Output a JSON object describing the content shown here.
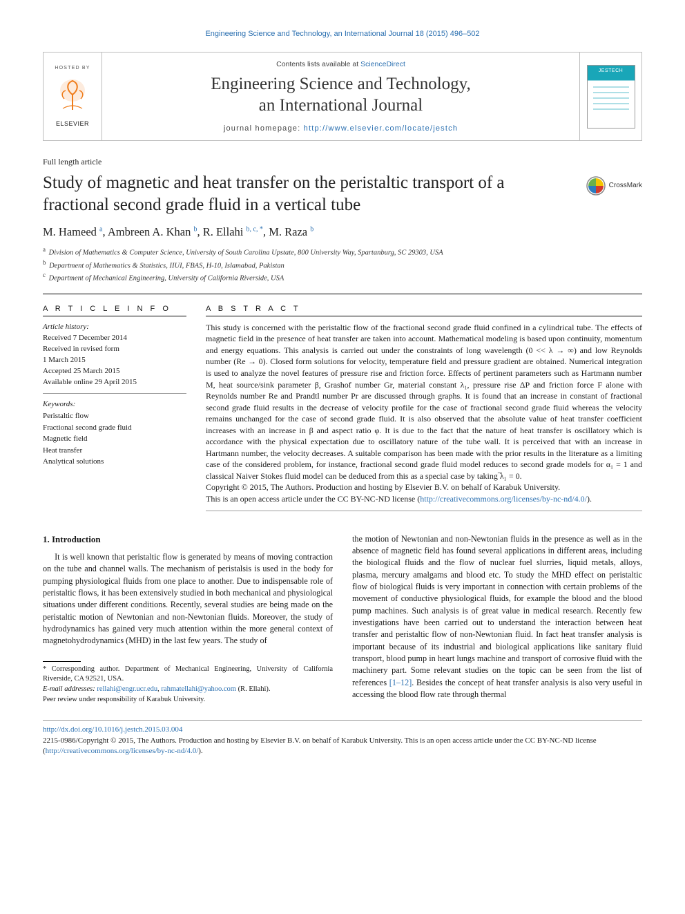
{
  "running_header": "Engineering Science and Technology, an International Journal 18 (2015) 496–502",
  "header": {
    "hosted_by": "HOSTED BY",
    "publisher": "ELSEVIER",
    "contents_prefix": "Contents lists available at ",
    "contents_link": "ScienceDirect",
    "journal_title_l1": "Engineering Science and Technology,",
    "journal_title_l2": "an International Journal",
    "homepage_prefix": "journal homepage: ",
    "homepage_url": "http://www.elsevier.com/locate/jestch",
    "cover_label": "JESTECH"
  },
  "article_type": "Full length article",
  "title": "Study of magnetic and heat transfer on the peristaltic transport of a fractional second grade fluid in a vertical tube",
  "crossmark": "CrossMark",
  "authors_html": "M. Hameed <sup>a</sup>, Ambreen A. Khan <sup>b</sup>, R. Ellahi <sup>b, c, *</sup>, M. Raza <sup>b</sup>",
  "affiliations": [
    {
      "key": "a",
      "text": "Division of Mathematics & Computer Science, University of South Carolina Upstate, 800 University Way, Spartanburg, SC 29303, USA"
    },
    {
      "key": "b",
      "text": "Department of Mathematics & Statistics, IIUI, FBAS, H-10, Islamabad, Pakistan"
    },
    {
      "key": "c",
      "text": "Department of Mechanical Engineering, University of California Riverside, USA"
    }
  ],
  "article_info": {
    "heading": "A R T I C L E   I N F O",
    "history_label": "Article history:",
    "history": [
      "Received 7 December 2014",
      "Received in revised form",
      "1 March 2015",
      "Accepted 25 March 2015",
      "Available online 29 April 2015"
    ],
    "keywords_label": "Keywords:",
    "keywords": [
      "Peristaltic flow",
      "Fractional second grade fluid",
      "Magnetic field",
      "Heat transfer",
      "Analytical solutions"
    ]
  },
  "abstract": {
    "heading": "A B S T R A C T",
    "body": "This study is concerned with the peristaltic flow of the fractional second grade fluid confined in a cylindrical tube. The effects of magnetic field in the presence of heat transfer are taken into account. Mathematical modeling is based upon continuity, momentum and energy equations. This analysis is carried out under the constraints of long wavelength (0 << λ → ∞) and low Reynolds number (Re → 0). Closed form solutions for velocity, temperature field and pressure gradient are obtained. Numerical integration is used to analyze the novel features of pressure rise and friction force. Effects of pertinent parameters such as Hartmann number M, heat source/sink parameter β, Grashof number Gr, material constant λ₁, pressure rise ΔP and friction force F alone with Reynolds number Re and Prandtl number Pr are discussed through graphs. It is found that an increase in constant of fractional second grade fluid results in the decrease of velocity profile for the case of fractional second grade fluid whereas the velocity remains unchanged for the case of second grade fluid. It is also observed that the absolute value of heat transfer coefficient increases with an increase in β and aspect ratio φ. It is due to the fact that the nature of heat transfer is oscillatory which is accordance with the physical expectation due to oscillatory nature of the tube wall. It is perceived that with an increase in Hartmann number, the velocity decreases. A suitable comparison has been made with the prior results in the literature as a limiting case of the considered problem, for instance, fractional second grade fluid model reduces to second grade models for α₁ = 1 and classical Naiver Stokes fluid model can be deduced from this as a special case by taking ̅λ₁ = 0.",
    "copyright": "Copyright © 2015, The Authors. Production and hosting by Elsevier B.V. on behalf of Karabuk University.",
    "openaccess_prefix": "This is an open access article under the CC BY-NC-ND license (",
    "license_url": "http://creativecommons.org/licenses/by-nc-nd/4.0/",
    "openaccess_suffix": ")."
  },
  "intro": {
    "heading": "1.  Introduction",
    "p1": "It is well known that peristaltic flow is generated by means of moving contraction on the tube and channel walls. The mechanism of peristalsis is used in the body for pumping physiological fluids from one place to another. Due to indispensable role of peristaltic flows, it has been extensively studied in both mechanical and physiological situations under different conditions. Recently, several studies are being made on the peristaltic motion of Newtonian and non-Newtonian fluids. Moreover, the study of hydrodynamics has gained very much attention within the more general context of magnetohydrodynamics (MHD) in the last few years. The study of",
    "p2_pre": "the motion of Newtonian and non-Newtonian fluids in the presence as well as in the absence of magnetic field has found several applications in different areas, including the biological fluids and the flow of nuclear fuel slurries, liquid metals, alloys, plasma, mercury amalgams and blood etc. To study the MHD effect on peristaltic flow of biological fluids is very important in connection with certain problems of the movement of conductive physiological fluids, for example the blood and the blood pump machines. Such analysis is of great value in medical research. Recently few investigations have been carried out to understand the interaction between heat transfer and peristaltic flow of non-Newtonian fluid. In fact heat transfer analysis is important because of its industrial and biological applications like sanitary fluid transport, blood pump in heart lungs machine and transport of corrosive fluid with the machinery part. Some relevant studies on the topic can be seen from the list of references ",
    "p2_ref": "[1–12]",
    "p2_post": ". Besides the concept of heat transfer analysis is also very useful in accessing the blood flow rate through thermal"
  },
  "footnotes": {
    "corr": "* Corresponding author. Department of Mechanical Engineering, University of California Riverside, CA 92521, USA.",
    "email_label": "E-mail addresses: ",
    "email1": "rellahi@engr.ucr.edu",
    "email_sep": ", ",
    "email2": "rahmatellahi@yahoo.com",
    "email_author": " (R. Ellahi).",
    "peer": "Peer review under responsibility of Karabuk University."
  },
  "footer": {
    "doi": "http://dx.doi.org/10.1016/j.jestch.2015.03.004",
    "issn_line_pre": "2215-0986/Copyright © 2015, The Authors. Production and hosting by Elsevier B.V. on behalf of Karabuk University. This is an open access article under the CC BY-NC-ND license (",
    "license_url": "http://creativecommons.org/licenses/by-nc-nd/4.0/",
    "issn_line_post": ")."
  },
  "colors": {
    "link": "#2a6fb0",
    "logo_orange": "#ef7c1a",
    "teal": "#19a6b8",
    "text": "#1a1a1a",
    "rule": "#000000",
    "rule_light": "#9a9a9a",
    "crossmark_yellow": "#f5c400",
    "crossmark_red": "#d23a2e",
    "crossmark_blue": "#2a7bbf",
    "crossmark_green": "#6ab04a"
  }
}
